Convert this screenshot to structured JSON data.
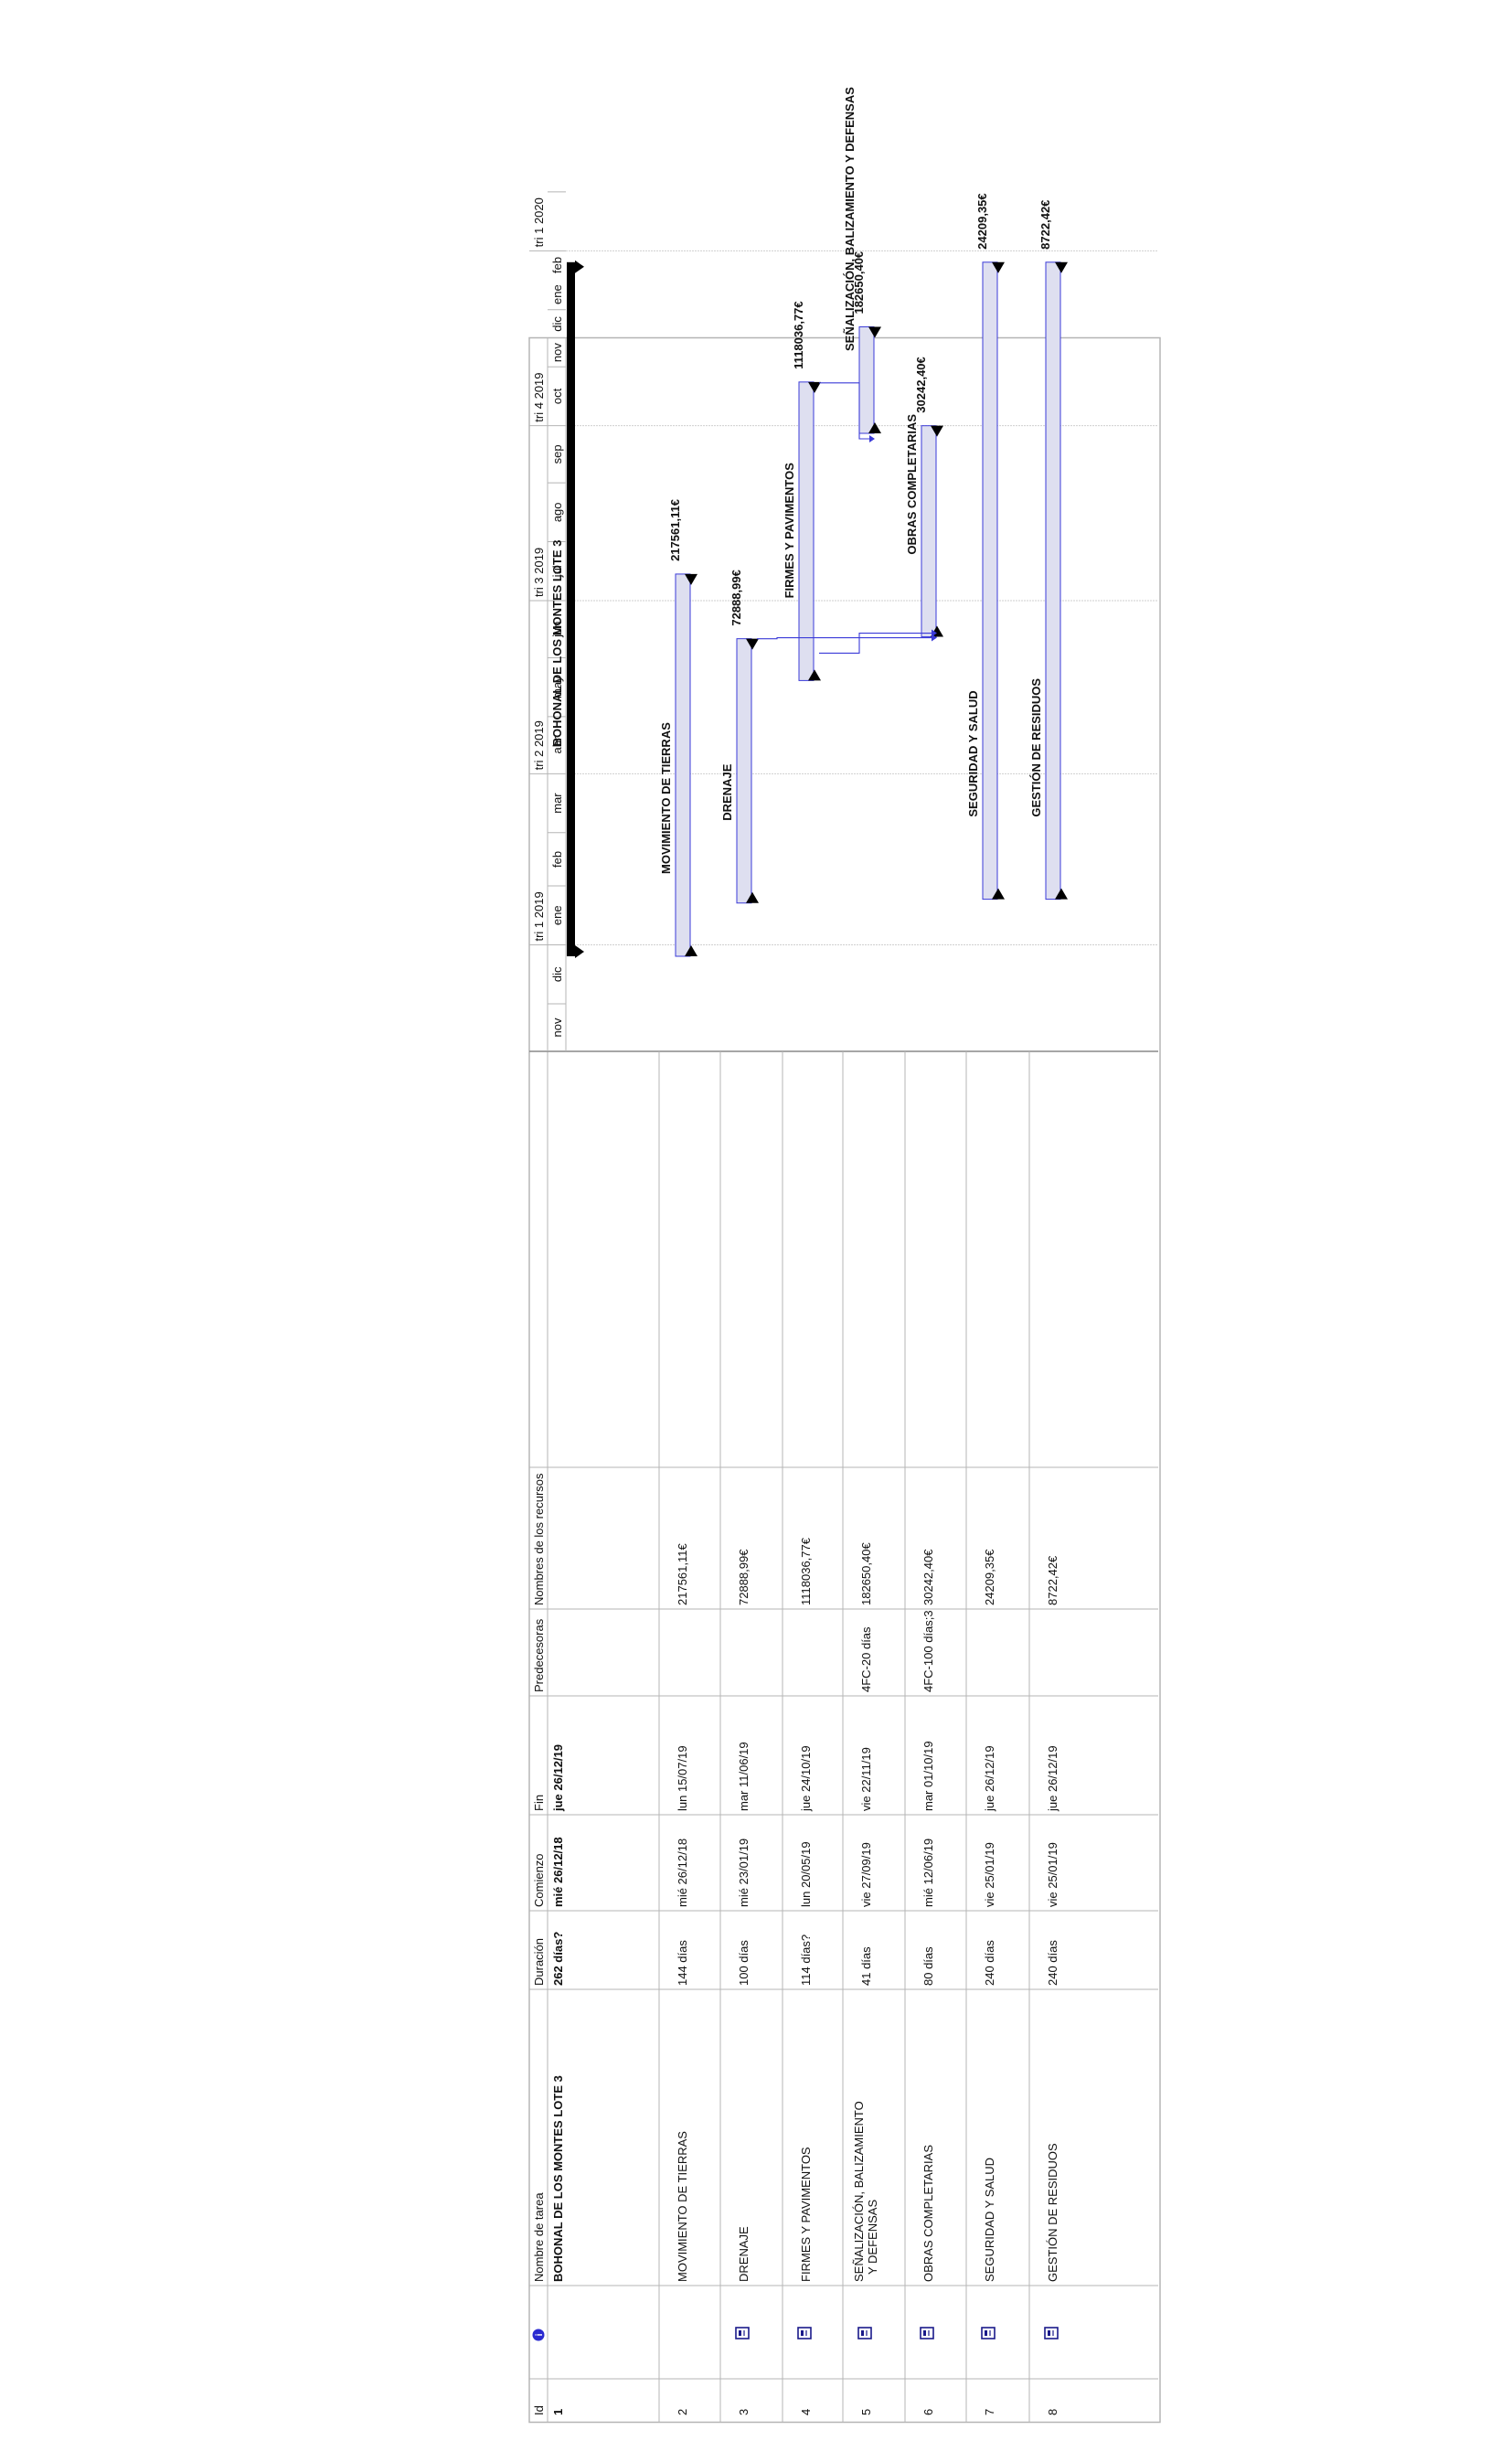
{
  "table": {
    "headers": {
      "id": "Id",
      "name": "Nombre de tarea",
      "duration": "Duración",
      "start": "Comienzo",
      "end": "Fin",
      "predecessors": "Predecesoras",
      "resources": "Nombres de los recursos"
    },
    "header_icon": "info-circle-icon",
    "row_icon": "task-notes-icon",
    "rows": [
      {
        "id": "1",
        "name": "BOHONAL DE LOS MONTES LOTE 3",
        "duration": "262 días?",
        "start": "mié 26/12/18",
        "end": "jue 26/12/19",
        "predecessors": "",
        "resources": "",
        "summary": true,
        "icon": false
      },
      {
        "id": "2",
        "name": "MOVIMIENTO DE TIERRAS",
        "duration": "144 días",
        "start": "mié 26/12/18",
        "end": "lun 15/07/19",
        "predecessors": "",
        "resources": "217561,11€",
        "summary": false,
        "icon": false
      },
      {
        "id": "3",
        "name": "DRENAJE",
        "duration": "100 días",
        "start": "mié 23/01/19",
        "end": "mar 11/06/19",
        "predecessors": "",
        "resources": "72888,99€",
        "summary": false,
        "icon": true
      },
      {
        "id": "4",
        "name": "FIRMES Y PAVIMENTOS",
        "duration": "114 días?",
        "start": "lun 20/05/19",
        "end": "jue 24/10/19",
        "predecessors": "",
        "resources": "1118036,77€",
        "summary": false,
        "icon": true
      },
      {
        "id": "5",
        "name": "SEÑALIZACIÓN, BALIZAMIENTO Y DEFENSAS",
        "name_line1": "SEÑALIZACIÓN, BALIZAMIENTO",
        "name_line2": "Y DEFENSAS",
        "duration": "41 días",
        "start": "vie 27/09/19",
        "end": "vie 22/11/19",
        "predecessors": "4FC-20 días",
        "resources": "182650,40€",
        "summary": false,
        "icon": true
      },
      {
        "id": "6",
        "name": "OBRAS COMPLETARIAS",
        "duration": "80 días",
        "start": "mié 12/06/19",
        "end": "mar 01/10/19",
        "predecessors": "4FC-100 días;3",
        "resources": "30242,40€",
        "summary": false,
        "icon": true
      },
      {
        "id": "7",
        "name": "SEGURIDAD Y SALUD",
        "duration": "240 días",
        "start": "vie 25/01/19",
        "end": "jue 26/12/19",
        "predecessors": "",
        "resources": "24209,35€",
        "summary": false,
        "icon": true
      },
      {
        "id": "8",
        "name": "GESTIÓN DE RESIDUOS",
        "duration": "240 días",
        "start": "vie 25/01/19",
        "end": "jue 26/12/19",
        "predecessors": "",
        "resources": "8722,42€",
        "summary": false,
        "icon": true
      }
    ]
  },
  "chart_data": {
    "type": "gantt",
    "timescale": {
      "quarters": [
        {
          "label": "tri 1 2019",
          "start": "2019-01-01"
        },
        {
          "label": "tri 2 2019",
          "start": "2019-04-01"
        },
        {
          "label": "tri 3 2019",
          "start": "2019-07-01"
        },
        {
          "label": "tri 4 2019",
          "start": "2019-10-01"
        },
        {
          "label": "tri 1 2020",
          "start": "2020-01-01"
        }
      ],
      "months": [
        {
          "label": "nov",
          "start": "2018-11-01"
        },
        {
          "label": "dic",
          "start": "2018-12-01"
        },
        {
          "label": "ene",
          "start": "2019-01-01"
        },
        {
          "label": "feb",
          "start": "2019-02-01"
        },
        {
          "label": "mar",
          "start": "2019-03-01"
        },
        {
          "label": "abr",
          "start": "2019-04-01"
        },
        {
          "label": "may",
          "start": "2019-05-01"
        },
        {
          "label": "jun",
          "start": "2019-06-01"
        },
        {
          "label": "jul",
          "start": "2019-07-01"
        },
        {
          "label": "ago",
          "start": "2019-08-01"
        },
        {
          "label": "sep",
          "start": "2019-09-01"
        },
        {
          "label": "oct",
          "start": "2019-10-01"
        },
        {
          "label": "nov",
          "start": "2019-11-01"
        },
        {
          "label": "dic",
          "start": "2019-12-01"
        },
        {
          "label": "ene",
          "start": "2020-01-01"
        },
        {
          "label": "feb",
          "start": "2020-02-01"
        }
      ],
      "visible_range": [
        "2018-11-06",
        "2020-02-28"
      ]
    },
    "tasks": [
      {
        "row": 1,
        "start": "2018-12-26",
        "end": "2019-12-26",
        "summary": true,
        "label": "BOHONAL DE LOS MONTES LOTE 3"
      },
      {
        "row": 2,
        "start": "2018-12-26",
        "end": "2019-07-15",
        "label": "217561,11€",
        "name_label": "MOVIMIENTO DE TIERRAS"
      },
      {
        "row": 3,
        "start": "2019-01-23",
        "end": "2019-06-11",
        "label": "72888,99€",
        "name_label": "DRENAJE"
      },
      {
        "row": 4,
        "start": "2019-05-20",
        "end": "2019-10-24",
        "label": "1118036,77€",
        "name_label": "FIRMES Y PAVIMENTOS"
      },
      {
        "row": 5,
        "start": "2019-09-27",
        "end": "2019-11-22",
        "label": "182650,40€",
        "name_label": "SEÑALIZACIÓN, BALIZAMIENTO Y DEFENSAS"
      },
      {
        "row": 6,
        "start": "2019-06-12",
        "end": "2019-10-01",
        "label": "30242,40€",
        "name_label": "OBRAS COMPLETARIAS"
      },
      {
        "row": 7,
        "start": "2019-01-25",
        "end": "2019-12-26",
        "label": "24209,35€",
        "name_label": "SEGURIDAD Y SALUD"
      },
      {
        "row": 8,
        "start": "2019-01-25",
        "end": "2019-12-26",
        "label": "8722,42€",
        "name_label": "GESTIÓN DE RESIDUOS"
      }
    ],
    "dependencies": [
      {
        "from": 4,
        "to": 5,
        "type": "FC"
      },
      {
        "from": 4,
        "to": 6,
        "type": "FC"
      },
      {
        "from": 3,
        "to": 6,
        "type": "FC"
      }
    ],
    "gridlines": [
      "2019-01-01",
      "2019-04-01",
      "2019-07-01",
      "2019-10-01",
      "2020-01-01"
    ],
    "colors": {
      "task_fill": "#dedff0",
      "task_border": "#3b3bd8",
      "summary_fill": "#000000",
      "link": "#3b3bd8",
      "grid": "#b5b5b5",
      "gridline": "#cfcfcf"
    }
  }
}
